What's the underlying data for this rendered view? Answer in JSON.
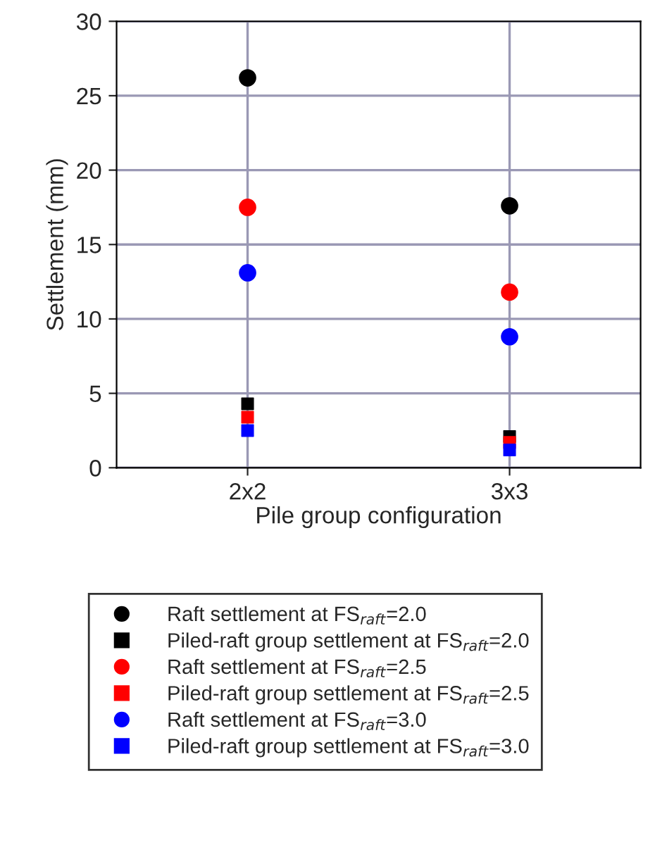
{
  "chart_data": {
    "type": "scatter",
    "xlabel": "Pile group configuration",
    "ylabel": "Settlement (mm)",
    "categories": [
      "2x2",
      "3x3"
    ],
    "ylim": [
      0,
      30
    ],
    "yticks": [
      0,
      5,
      10,
      15,
      20,
      25,
      30
    ],
    "grid": true,
    "legend": "bottom",
    "series": [
      {
        "name": "Raft settlement at FS$_{raft}$=2.0",
        "color": "#000000",
        "marker": "circle",
        "values": [
          26.2,
          17.6
        ]
      },
      {
        "name": "Piled-raft group settlement at FS$_{raft}$=2.0",
        "color": "#000000",
        "marker": "square",
        "values": [
          4.3,
          2.1
        ]
      },
      {
        "name": "Raft settlement at FS$_{raft}$=2.5",
        "color": "#ff0000",
        "marker": "circle",
        "values": [
          17.5,
          11.8
        ]
      },
      {
        "name": "Piled-raft group settlement at FS$_{raft}$=2.5",
        "color": "#ff0000",
        "marker": "square",
        "values": [
          3.4,
          1.7
        ]
      },
      {
        "name": "Raft settlement at FS$_{raft}$=3.0",
        "color": "#0000ff",
        "marker": "circle",
        "values": [
          13.1,
          8.8
        ]
      },
      {
        "name": "Piled-raft group settlement at FS$_{raft}$=3.0",
        "color": "#0000ff",
        "marker": "square",
        "values": [
          2.5,
          1.2
        ]
      }
    ]
  }
}
